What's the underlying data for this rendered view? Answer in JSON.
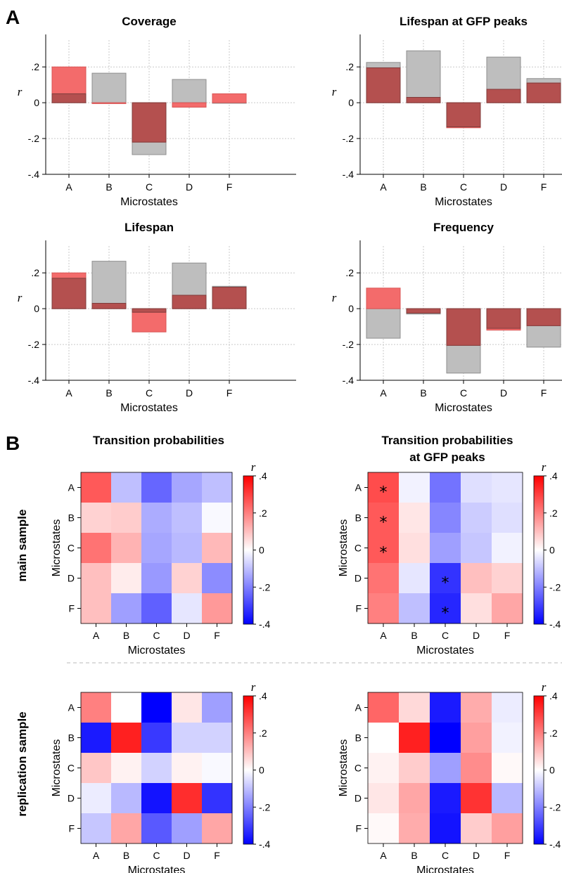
{
  "panel_labels": {
    "a": "A",
    "b": "B"
  },
  "row_labels": {
    "main": "main sample",
    "replication": "replication sample"
  },
  "colors": {
    "main": "#f36b6b",
    "overlay": "#b4504f",
    "replication": "#bebebe",
    "cmap_neg": "#0000ff",
    "cmap_mid": "#ffffff",
    "cmap_pos": "#ff0000"
  },
  "chart_data": [
    {
      "type": "bar",
      "title": "Coverage",
      "xlabel": "Microstates",
      "ylabel": "r",
      "categories": [
        "A",
        "B",
        "C",
        "D",
        "F"
      ],
      "ylim": [
        -0.4,
        0.35
      ],
      "yticks": [
        0.2,
        0,
        -0.2,
        -0.4
      ],
      "ytick_labels": [
        ".2",
        "0",
        "-.2",
        "-.4"
      ],
      "grid": true,
      "series": [
        {
          "name": "main sample",
          "values": [
            0.2,
            -0.005,
            -0.22,
            -0.025,
            0.05
          ]
        },
        {
          "name": "replication sample",
          "values": [
            0.05,
            0.165,
            -0.29,
            0.13,
            0.0
          ]
        }
      ]
    },
    {
      "type": "bar",
      "title": "Lifespan at GFP peaks",
      "xlabel": "Microstates",
      "ylabel": "r",
      "categories": [
        "A",
        "B",
        "C",
        "D",
        "F"
      ],
      "ylim": [
        -0.4,
        0.35
      ],
      "yticks": [
        0.2,
        0,
        -0.2,
        -0.4
      ],
      "ytick_labels": [
        ".2",
        "0",
        "-.2",
        "-.4"
      ],
      "grid": true,
      "series": [
        {
          "name": "main sample",
          "values": [
            0.195,
            0.03,
            -0.14,
            0.075,
            0.11
          ]
        },
        {
          "name": "replication sample",
          "values": [
            0.225,
            0.29,
            -0.135,
            0.255,
            0.135
          ]
        }
      ]
    },
    {
      "type": "bar",
      "title": "Lifespan",
      "xlabel": "Microstates",
      "ylabel": "r",
      "categories": [
        "A",
        "B",
        "C",
        "D",
        "F"
      ],
      "ylim": [
        -0.4,
        0.35
      ],
      "yticks": [
        0.2,
        0,
        -0.2,
        -0.4
      ],
      "ytick_labels": [
        ".2",
        "0",
        "-.2",
        "-.4"
      ],
      "grid": true,
      "series": [
        {
          "name": "main sample",
          "values": [
            0.2,
            0.03,
            -0.13,
            0.075,
            0.12
          ]
        },
        {
          "name": "replication sample",
          "values": [
            0.17,
            0.265,
            -0.02,
            0.255,
            0.125
          ]
        }
      ]
    },
    {
      "type": "bar",
      "title": "Frequency",
      "xlabel": "Microstates",
      "ylabel": "r",
      "categories": [
        "A",
        "B",
        "C",
        "D",
        "F"
      ],
      "ylim": [
        -0.4,
        0.35
      ],
      "yticks": [
        0.2,
        0,
        -0.2,
        -0.4
      ],
      "ytick_labels": [
        ".2",
        "0",
        "-.2",
        "-.4"
      ],
      "grid": true,
      "series": [
        {
          "name": "main sample",
          "values": [
            0.115,
            -0.025,
            -0.205,
            -0.12,
            -0.095
          ]
        },
        {
          "name": "replication sample",
          "values": [
            -0.165,
            -0.03,
            -0.36,
            -0.11,
            -0.215
          ]
        }
      ]
    },
    {
      "type": "heatmap",
      "title": "Transition probabilities",
      "row_group": "main sample",
      "xlabel": "Microstates",
      "ylabel": "Microstates",
      "x": [
        "A",
        "B",
        "C",
        "D",
        "F"
      ],
      "y": [
        "A",
        "B",
        "C",
        "D",
        "F"
      ],
      "values": [
        [
          0.26,
          -0.1,
          -0.24,
          -0.14,
          -0.1
        ],
        [
          0.07,
          0.08,
          -0.13,
          -0.1,
          -0.01
        ],
        [
          0.22,
          0.12,
          -0.14,
          -0.11,
          0.11
        ],
        [
          0.1,
          0.03,
          -0.16,
          0.07,
          -0.18
        ],
        [
          0.1,
          -0.15,
          -0.25,
          -0.04,
          0.16
        ]
      ],
      "significant": [],
      "colorbar": {
        "label": "r",
        "range": [
          -0.4,
          0.4
        ],
        "ticks": [
          0.4,
          0.2,
          0,
          -0.2,
          -0.4
        ],
        "tick_labels": [
          ".4",
          ".2",
          "0",
          "-.2",
          "-.4"
        ]
      }
    },
    {
      "type": "heatmap",
      "title": "Transition probabilities at GFP peaks",
      "row_group": "main sample",
      "xlabel": "Microstates",
      "ylabel": "Microstates",
      "x": [
        "A",
        "B",
        "C",
        "D",
        "F"
      ],
      "y": [
        "A",
        "B",
        "C",
        "D",
        "F"
      ],
      "values": [
        [
          0.28,
          -0.02,
          -0.22,
          -0.05,
          -0.04
        ],
        [
          0.26,
          0.04,
          -0.19,
          -0.08,
          -0.05
        ],
        [
          0.26,
          0.05,
          -0.15,
          -0.09,
          -0.02
        ],
        [
          0.22,
          -0.04,
          -0.32,
          0.1,
          0.07
        ],
        [
          0.2,
          -0.1,
          -0.34,
          0.05,
          0.14
        ]
      ],
      "significant": [
        [
          0,
          0
        ],
        [
          1,
          0
        ],
        [
          2,
          0
        ],
        [
          3,
          2
        ],
        [
          4,
          2
        ]
      ],
      "colorbar": {
        "label": "r",
        "range": [
          -0.4,
          0.4
        ],
        "ticks": [
          0.4,
          0.2,
          0,
          -0.2,
          -0.4
        ],
        "tick_labels": [
          ".4",
          ".2",
          "0",
          "-.2",
          "-.4"
        ]
      }
    },
    {
      "type": "heatmap",
      "title": "",
      "row_group": "replication sample",
      "xlabel": "Microstates",
      "ylabel": "Microstates",
      "x": [
        "A",
        "B",
        "C",
        "D",
        "F"
      ],
      "y": [
        "A",
        "B",
        "C",
        "D",
        "F"
      ],
      "values": [
        [
          0.2,
          0.0,
          -0.4,
          0.04,
          -0.15
        ],
        [
          -0.36,
          0.35,
          -0.31,
          -0.07,
          -0.07
        ],
        [
          0.09,
          0.02,
          -0.07,
          0.02,
          -0.01
        ],
        [
          -0.03,
          -0.11,
          -0.37,
          0.33,
          -0.32
        ],
        [
          -0.09,
          0.14,
          -0.26,
          -0.15,
          0.14
        ]
      ],
      "significant": [],
      "colorbar": {
        "label": "r",
        "range": [
          -0.4,
          0.4
        ],
        "ticks": [
          0.4,
          0.2,
          0,
          -0.2,
          -0.4
        ],
        "tick_labels": [
          ".4",
          ".2",
          "0",
          "-.2",
          "-.4"
        ]
      }
    },
    {
      "type": "heatmap",
      "title": "",
      "row_group": "replication sample",
      "xlabel": "Microstates",
      "ylabel": "Microstates",
      "x": [
        "A",
        "B",
        "C",
        "D",
        "F"
      ],
      "y": [
        "A",
        "B",
        "C",
        "D",
        "F"
      ],
      "values": [
        [
          0.24,
          0.06,
          -0.36,
          0.13,
          -0.03
        ],
        [
          0.0,
          0.35,
          -0.42,
          0.15,
          -0.02
        ],
        [
          0.02,
          0.08,
          -0.15,
          0.18,
          0.01
        ],
        [
          0.04,
          0.14,
          -0.36,
          0.32,
          -0.11
        ],
        [
          0.01,
          0.13,
          -0.37,
          0.08,
          0.15
        ]
      ],
      "significant": [],
      "colorbar": {
        "label": "r",
        "range": [
          -0.4,
          0.4
        ],
        "ticks": [
          0.4,
          0.2,
          0,
          -0.2,
          -0.4
        ],
        "tick_labels": [
          ".4",
          ".2",
          "0",
          "-.2",
          "-.4"
        ]
      }
    }
  ]
}
